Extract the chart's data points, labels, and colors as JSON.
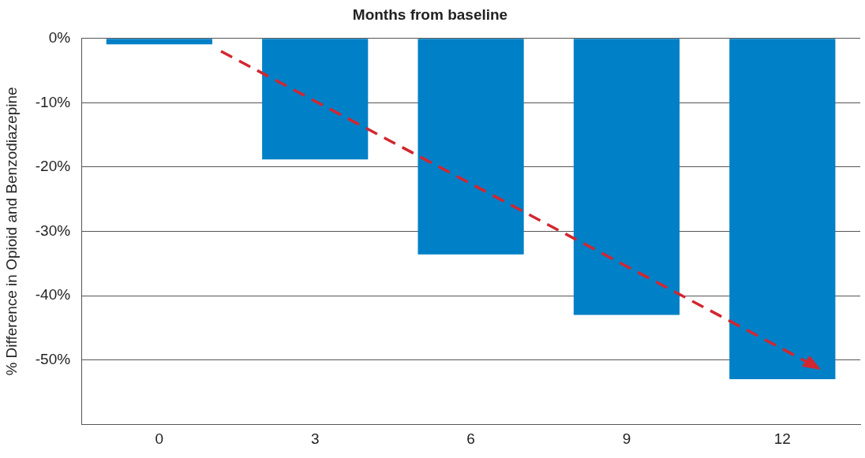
{
  "chart_data": {
    "type": "bar",
    "xlabel": "Months from baseline",
    "ylabel": "% Difference in Opioid and Benzodiazepine",
    "categories": [
      "0",
      "3",
      "6",
      "9",
      "12"
    ],
    "values": [
      -0.9,
      -18.8,
      -33.6,
      -43,
      -53
    ],
    "color": "#0080c6",
    "ylim": [
      -60,
      0
    ],
    "yticks": [
      {
        "value": 0,
        "label": "0%"
      },
      {
        "value": -10,
        "label": "-10%"
      },
      {
        "value": -20,
        "label": "-20%"
      },
      {
        "value": -30,
        "label": "-30%"
      },
      {
        "value": -40,
        "label": "-40%"
      },
      {
        "value": -50,
        "label": "-50%"
      }
    ],
    "grid": "y",
    "legend": false
  }
}
